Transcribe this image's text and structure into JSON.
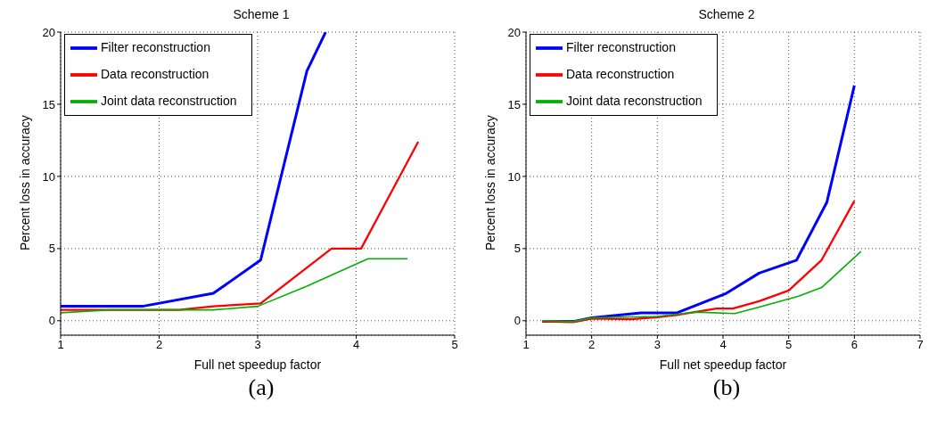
{
  "chart_data": [
    {
      "type": "line",
      "title": "Scheme 1",
      "xlabel": "Full net speedup factor",
      "ylabel": "Percent loss in accuracy",
      "xlim": [
        1,
        5
      ],
      "xticks": [
        1,
        2,
        3,
        4,
        5
      ],
      "ylim": [
        -1,
        20
      ],
      "yticks": [
        0,
        5,
        10,
        15,
        20
      ],
      "grid": true,
      "legend": "top left",
      "annotations": [
        "(a)"
      ],
      "series": [
        {
          "name": "Filter reconstruction",
          "color": "#0000ff",
          "x": [
            1,
            1.83,
            2.55,
            3.03,
            3.5,
            3.69
          ],
          "values": [
            1.0,
            1.0,
            1.9,
            4.2,
            17.3,
            20
          ]
        },
        {
          "name": "Data reconstruction",
          "color": "#ff0000",
          "x": [
            1,
            2.2,
            2.55,
            3.03,
            3.75,
            4.05,
            4.63
          ],
          "values": [
            0.75,
            0.75,
            1.0,
            1.2,
            5,
            5,
            12.4
          ]
        },
        {
          "name": "Joint data reconstruction",
          "color": "#00b000",
          "x": [
            1,
            1.5,
            2.55,
            3.0,
            3.5,
            4.12,
            4.52
          ],
          "values": [
            0.55,
            0.75,
            0.75,
            1.0,
            2.4,
            4.3,
            4.3
          ]
        }
      ]
    },
    {
      "type": "line",
      "title": "Scheme 2",
      "xlabel": "Full net speedup factor",
      "ylabel": "Percent loss in accuracy",
      "xlim": [
        1,
        7
      ],
      "xticks": [
        1,
        2,
        3,
        4,
        5,
        6,
        7
      ],
      "ylim": [
        -1,
        20
      ],
      "yticks": [
        0,
        5,
        10,
        15,
        20
      ],
      "grid": true,
      "legend": "top left",
      "annotations": [
        "(b)"
      ],
      "series": [
        {
          "name": "Filter reconstruction",
          "color": "#0000ff",
          "x": [
            1.25,
            1.72,
            2.0,
            2.75,
            3.3,
            4.05,
            4.55,
            5.12,
            5.58,
            6.0
          ],
          "values": [
            -0.05,
            -0.05,
            0.2,
            0.55,
            0.55,
            1.9,
            3.3,
            4.2,
            8.2,
            16.3
          ]
        },
        {
          "name": "Data reconstruction",
          "color": "#ff0000",
          "x": [
            1.25,
            1.72,
            2.0,
            2.6,
            3.0,
            3.3,
            3.9,
            4.15,
            4.55,
            5.0,
            5.5,
            6.0
          ],
          "values": [
            -0.05,
            -0.1,
            0.15,
            0.1,
            0.25,
            0.4,
            0.85,
            0.85,
            1.35,
            2.1,
            4.2,
            8.3
          ]
        },
        {
          "name": "Joint data reconstruction",
          "color": "#00b000",
          "x": [
            1.25,
            1.72,
            2.0,
            3.0,
            3.6,
            4.18,
            4.55,
            5.15,
            5.5,
            6.1
          ],
          "values": [
            0.0,
            -0.05,
            0.2,
            0.3,
            0.6,
            0.5,
            0.95,
            1.7,
            2.3,
            4.8
          ]
        }
      ]
    }
  ]
}
